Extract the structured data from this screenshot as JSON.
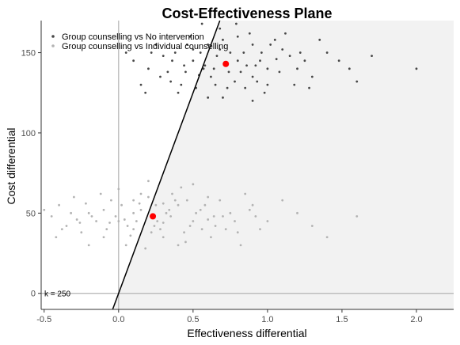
{
  "chart_data": {
    "type": "scatter",
    "title": "Cost-Effectiveness Plane",
    "xlabel": "Effectiveness differential",
    "ylabel": "Cost differential",
    "xlim": [
      -0.52,
      2.25
    ],
    "ylim": [
      -10,
      170
    ],
    "x_ticks": [
      -0.5,
      0.0,
      0.5,
      1.0,
      1.5,
      2.0
    ],
    "x_tick_labels": [
      "-0.5",
      "0.0",
      "0.5",
      "1.0",
      "1.5",
      "2.0"
    ],
    "y_ticks": [
      0,
      50,
      100,
      150
    ],
    "y_tick_labels": [
      "0",
      "50",
      "100",
      "150"
    ],
    "legend_position": "top-left",
    "wtp": {
      "k": 250,
      "label": "k = 250"
    },
    "series": [
      {
        "name": "Group counselling vs No intervention",
        "color": "#474747",
        "mean": [
          0.72,
          143
        ],
        "values": [
          [
            0.72,
            143
          ],
          [
            0.55,
            150
          ],
          [
            0.9,
            135
          ],
          [
            0.3,
            148
          ],
          [
            1.1,
            152
          ],
          [
            0.65,
            130
          ],
          [
            0.8,
            160
          ],
          [
            0.45,
            138
          ],
          [
            0.95,
            145
          ],
          [
            1.2,
            140
          ],
          [
            0.6,
            155
          ],
          [
            0.35,
            132
          ],
          [
            0.85,
            128
          ],
          [
            1.05,
            158
          ],
          [
            0.5,
            145
          ],
          [
            0.75,
            150
          ],
          [
            0.2,
            140
          ],
          [
            1.3,
            135
          ],
          [
            0.68,
            165
          ],
          [
            0.4,
            125
          ],
          [
            0.9,
            155
          ],
          [
            1.0,
            130
          ],
          [
            0.58,
            142
          ],
          [
            0.82,
            138
          ],
          [
            0.25,
            155
          ],
          [
            1.15,
            148
          ],
          [
            0.7,
            122
          ],
          [
            0.48,
            160
          ],
          [
            0.62,
            135
          ],
          [
            0.92,
            142
          ],
          [
            1.4,
            150
          ],
          [
            0.1,
            145
          ],
          [
            0.78,
            132
          ],
          [
            0.52,
            128
          ],
          [
            1.08,
            138
          ],
          [
            0.66,
            148
          ],
          [
            0.88,
            162
          ],
          [
            0.38,
            150
          ],
          [
            0.98,
            125
          ],
          [
            1.25,
            145
          ],
          [
            0.56,
            168
          ],
          [
            0.74,
            138
          ],
          [
            0.15,
            130
          ],
          [
            1.55,
            140
          ],
          [
            0.84,
            150
          ],
          [
            0.44,
            142
          ],
          [
            1.02,
            155
          ],
          [
            0.6,
            122
          ],
          [
            0.33,
            138
          ],
          [
            1.18,
            130
          ],
          [
            0.7,
            158
          ],
          [
            0.9,
            120
          ],
          [
            0.5,
            152
          ],
          [
            1.35,
            158
          ],
          [
            0.28,
            135
          ],
          [
            0.8,
            145
          ],
          [
            1.12,
            162
          ],
          [
            0.64,
            140
          ],
          [
            0.42,
            130
          ],
          [
            0.96,
            150
          ],
          [
            1.6,
            132
          ],
          [
            0.05,
            150
          ],
          [
            0.73,
            128
          ],
          [
            1.48,
            145
          ],
          [
            0.54,
            136
          ],
          [
            0.86,
            142
          ],
          [
            0.18,
            125
          ],
          [
            1.22,
            150
          ],
          [
            0.68,
            152
          ],
          [
            1.0,
            140
          ],
          [
            2.0,
            140
          ],
          [
            1.7,
            148
          ],
          [
            0.36,
            145
          ],
          [
            0.93,
            132
          ],
          [
            0.57,
            140
          ],
          [
            1.28,
            128
          ],
          [
            0.79,
            168
          ],
          [
            0.46,
            155
          ],
          [
            1.06,
            146
          ],
          [
            0.22,
            150
          ]
        ]
      },
      {
        "name": "Group counselling vs Individual counselling",
        "color": "#b3b3b3",
        "mean": [
          0.23,
          48
        ],
        "values": [
          [
            0.23,
            48
          ],
          [
            0.0,
            45
          ],
          [
            -0.2,
            50
          ],
          [
            0.4,
            55
          ],
          [
            0.1,
            40
          ],
          [
            -0.35,
            42
          ],
          [
            0.6,
            60
          ],
          [
            0.3,
            35
          ],
          [
            -0.1,
            52
          ],
          [
            0.5,
            45
          ],
          [
            0.15,
            62
          ],
          [
            -0.25,
            38
          ],
          [
            0.75,
            50
          ],
          [
            0.05,
            30
          ],
          [
            0.35,
            48
          ],
          [
            -0.4,
            55
          ],
          [
            0.2,
            70
          ],
          [
            0.65,
            42
          ],
          [
            -0.05,
            58
          ],
          [
            0.45,
            32
          ],
          [
            0.9,
            55
          ],
          [
            0.1,
            50
          ],
          [
            -0.15,
            45
          ],
          [
            0.28,
            40
          ],
          [
            0.55,
            52
          ],
          [
            -0.3,
            60
          ],
          [
            0.8,
            38
          ],
          [
            0.0,
            65
          ],
          [
            0.38,
            58
          ],
          [
            -0.45,
            48
          ],
          [
            0.18,
            28
          ],
          [
            1.0,
            45
          ],
          [
            0.62,
            35
          ],
          [
            -0.08,
            40
          ],
          [
            0.42,
            66
          ],
          [
            0.25,
            55
          ],
          [
            -0.2,
            30
          ],
          [
            0.7,
            48
          ],
          [
            0.12,
            45
          ],
          [
            -0.5,
            52
          ],
          [
            0.48,
            42
          ],
          [
            0.85,
            62
          ],
          [
            0.32,
            50
          ],
          [
            -0.12,
            62
          ],
          [
            0.08,
            36
          ],
          [
            1.2,
            50
          ],
          [
            0.58,
            55
          ],
          [
            -0.28,
            46
          ],
          [
            0.22,
            38
          ],
          [
            0.95,
            40
          ],
          [
            0.02,
            55
          ],
          [
            0.4,
            30
          ],
          [
            -0.38,
            40
          ],
          [
            0.68,
            58
          ],
          [
            0.15,
            52
          ],
          [
            0.5,
            68
          ],
          [
            -0.22,
            56
          ],
          [
            0.3,
            44
          ],
          [
            1.4,
            35
          ],
          [
            0.78,
            45
          ],
          [
            0.06,
            42
          ],
          [
            -0.1,
            35
          ],
          [
            0.36,
            62
          ],
          [
            0.88,
            52
          ],
          [
            0.44,
            38
          ],
          [
            -0.32,
            50
          ],
          [
            0.2,
            60
          ],
          [
            0.6,
            46
          ],
          [
            1.1,
            58
          ],
          [
            -0.02,
            48
          ],
          [
            0.52,
            50
          ],
          [
            0.26,
            45
          ],
          [
            -0.42,
            35
          ],
          [
            0.72,
            40
          ],
          [
            0.14,
            56
          ],
          [
            1.6,
            48
          ],
          [
            0.34,
            52
          ],
          [
            -0.18,
            48
          ],
          [
            0.82,
            30
          ],
          [
            0.46,
            58
          ],
          [
            0.04,
            46
          ],
          [
            0.64,
            48
          ],
          [
            -0.06,
            44
          ],
          [
            0.3,
            56
          ],
          [
            1.3,
            42
          ],
          [
            0.1,
            58
          ],
          [
            -0.26,
            44
          ],
          [
            0.56,
            40
          ],
          [
            0.92,
            48
          ],
          [
            0.24,
            42
          ]
        ]
      }
    ]
  }
}
